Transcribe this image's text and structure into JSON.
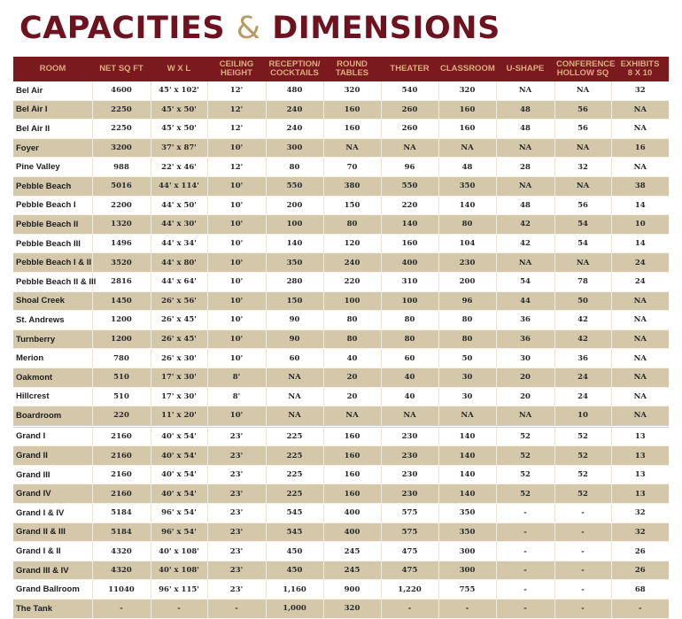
{
  "title": {
    "part1": "CAPACITIES",
    "amp": "&",
    "part2": "DIMENSIONS"
  },
  "colors": {
    "title_red": "#6e1220",
    "title_gold": "#b99a62",
    "header_bg": "#7a1a1f",
    "header_text": "#d9ae7e",
    "row_alt_bg": "#d5c7a9"
  },
  "table": {
    "headers": [
      [
        "ROOM"
      ],
      [
        "NET SQ FT"
      ],
      [
        "W X L"
      ],
      [
        "CEILING",
        "HEIGHT"
      ],
      [
        "RECEPTION/",
        "COCKTAILS"
      ],
      [
        "ROUND",
        "TABLES"
      ],
      [
        "THEATER"
      ],
      [
        "CLASSROOM"
      ],
      [
        "U-SHAPE"
      ],
      [
        "CONFERENCE",
        "HOLLOW SQ"
      ],
      [
        "EXHIBITS",
        "8 X 10"
      ]
    ],
    "rows": [
      [
        "Bel Air",
        "4600",
        "45' x 102'",
        "12'",
        "480",
        "320",
        "540",
        "320",
        "NA",
        "NA",
        "32"
      ],
      [
        "Bel Air I",
        "2250",
        "45' x 50'",
        "12'",
        "240",
        "160",
        "260",
        "160",
        "48",
        "56",
        "NA"
      ],
      [
        "Bel Air II",
        "2250",
        "45' x 50'",
        "12'",
        "240",
        "160",
        "260",
        "160",
        "48",
        "56",
        "NA"
      ],
      [
        "Foyer",
        "3200",
        "37' x 87'",
        "10'",
        "300",
        "NA",
        "NA",
        "NA",
        "NA",
        "NA",
        "16"
      ],
      [
        "Pine Valley",
        "988",
        "22' x 46'",
        "12'",
        "80",
        "70",
        "96",
        "48",
        "28",
        "32",
        "NA"
      ],
      [
        "Pebble Beach",
        "5016",
        "44' x 114'",
        "10'",
        "550",
        "380",
        "550",
        "350",
        "NA",
        "NA",
        "38"
      ],
      [
        "Pebble Beach I",
        "2200",
        "44' x 50'",
        "10'",
        "200",
        "150",
        "220",
        "140",
        "48",
        "56",
        "14"
      ],
      [
        "Pebble Beach II",
        "1320",
        "44' x 30'",
        "10'",
        "100",
        "80",
        "140",
        "80",
        "42",
        "54",
        "10"
      ],
      [
        "Pebble Beach III",
        "1496",
        "44' x 34'",
        "10'",
        "140",
        "120",
        "160",
        "104",
        "42",
        "54",
        "14"
      ],
      [
        "Pebble Beach I & II",
        "3520",
        "44' x 80'",
        "10'",
        "350",
        "240",
        "400",
        "230",
        "NA",
        "NA",
        "24"
      ],
      [
        "Pebble Beach II & III",
        "2816",
        "44' x 64'",
        "10'",
        "280",
        "220",
        "310",
        "200",
        "54",
        "78",
        "24"
      ],
      [
        "Shoal Creek",
        "1450",
        "26' x 56'",
        "10'",
        "150",
        "100",
        "100",
        "96",
        "44",
        "50",
        "NA"
      ],
      [
        "St. Andrews",
        "1200",
        "26' x 45'",
        "10'",
        "90",
        "80",
        "80",
        "80",
        "36",
        "42",
        "NA"
      ],
      [
        "Turnberry",
        "1200",
        "26' x 45'",
        "10'",
        "90",
        "80",
        "80",
        "80",
        "36",
        "42",
        "NA"
      ],
      [
        "Merion",
        "780",
        "26' x 30'",
        "10'",
        "60",
        "40",
        "60",
        "50",
        "30",
        "36",
        "NA"
      ],
      [
        "Oakmont",
        "510",
        "17' x 30'",
        "8'",
        "NA",
        "20",
        "40",
        "30",
        "20",
        "24",
        "NA"
      ],
      [
        "Hillcrest",
        "510",
        "17' x 30'",
        "8'",
        "NA",
        "20",
        "40",
        "30",
        "20",
        "24",
        "NA"
      ],
      [
        "Boardroom",
        "220",
        "11' x 20'",
        "10'",
        "NA",
        "NA",
        "NA",
        "NA",
        "NA",
        "10",
        "NA"
      ],
      [
        "Grand I",
        "2160",
        "40' x 54'",
        "23'",
        "225",
        "160",
        "230",
        "140",
        "52",
        "52",
        "13"
      ],
      [
        "Grand II",
        "2160",
        "40' x 54'",
        "23'",
        "225",
        "160",
        "230",
        "140",
        "52",
        "52",
        "13"
      ],
      [
        "Grand III",
        "2160",
        "40' x 54'",
        "23'",
        "225",
        "160",
        "230",
        "140",
        "52",
        "52",
        "13"
      ],
      [
        "Grand IV",
        "2160",
        "40' x 54'",
        "23'",
        "225",
        "160",
        "230",
        "140",
        "52",
        "52",
        "13"
      ],
      [
        "Grand I & IV",
        "5184",
        "96' x 54'",
        "23'",
        "545",
        "400",
        "575",
        "350",
        "-",
        "-",
        "32"
      ],
      [
        "Grand II & III",
        "5184",
        "96' x 54'",
        "23'",
        "545",
        "400",
        "575",
        "350",
        "-",
        "-",
        "32"
      ],
      [
        "Grand I & II",
        "4320",
        "40' x 108'",
        "23'",
        "450",
        "245",
        "475",
        "300",
        "-",
        "-",
        "26"
      ],
      [
        "Grand III & IV",
        "4320",
        "40' x 108'",
        "23'",
        "450",
        "245",
        "475",
        "300",
        "-",
        "-",
        "26"
      ],
      [
        "Grand Ballroom",
        "11040",
        "96' x 115'",
        "23'",
        "1,160",
        "900",
        "1,220",
        "755",
        "-",
        "-",
        "68"
      ],
      [
        "The Tank",
        "-",
        "-",
        "-",
        "1,000",
        "320",
        "-",
        "-",
        "-",
        "-",
        "-"
      ]
    ]
  }
}
